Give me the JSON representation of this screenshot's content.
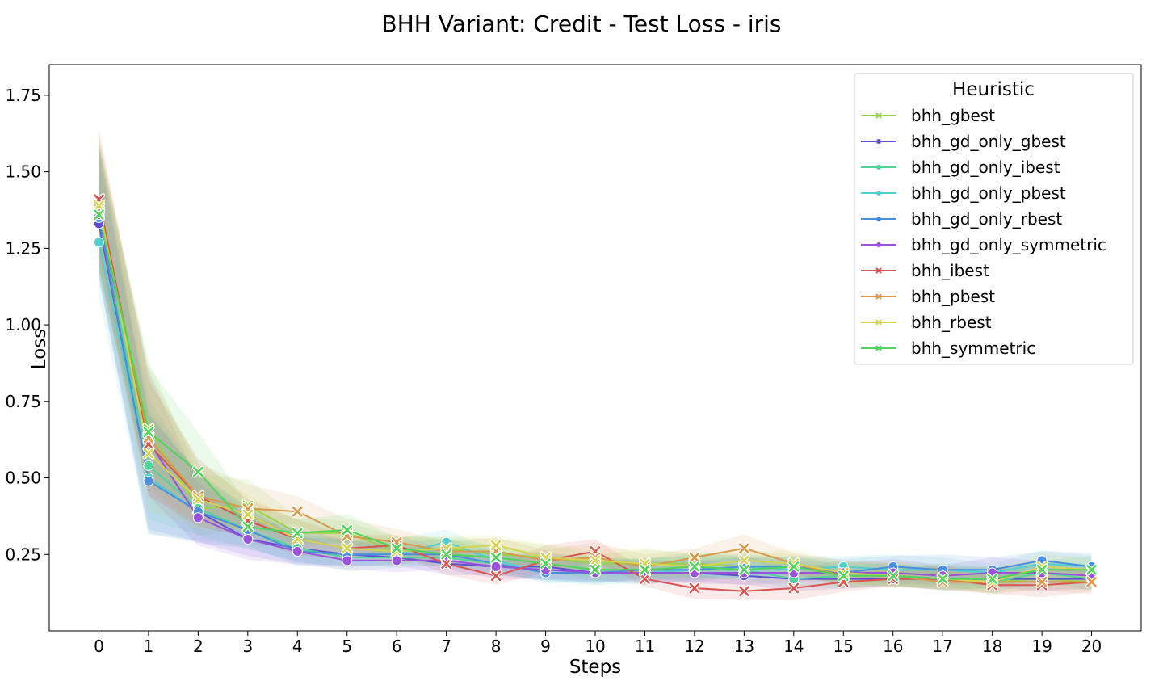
{
  "chart_data": {
    "type": "line",
    "title": "BHH Variant: Credit - Test Loss - iris",
    "xlabel": "Steps",
    "ylabel": "Loss",
    "xlim": [
      -1,
      21
    ],
    "ylim": [
      0.0,
      1.85
    ],
    "x": [
      0,
      1,
      2,
      3,
      4,
      5,
      6,
      7,
      8,
      9,
      10,
      11,
      12,
      13,
      14,
      15,
      16,
      17,
      18,
      19,
      20
    ],
    "x_ticks": [
      "0",
      "1",
      "2",
      "3",
      "4",
      "5",
      "6",
      "7",
      "8",
      "9",
      "10",
      "11",
      "12",
      "13",
      "14",
      "15",
      "16",
      "17",
      "18",
      "19",
      "20"
    ],
    "y_ticks": [
      0.25,
      0.5,
      0.75,
      1.0,
      1.25,
      1.5,
      1.75
    ],
    "y_tick_labels": [
      "0.25",
      "0.50",
      "0.75",
      "1.00",
      "1.25",
      "1.50",
      "1.75"
    ],
    "grid": false,
    "legend": {
      "title": "Heuristic",
      "position": "top-right"
    },
    "series": [
      {
        "name": "bhh_gbest",
        "color": "#96d44a",
        "marker": "x",
        "values": [
          1.37,
          0.66,
          0.4,
          0.41,
          0.32,
          0.32,
          0.26,
          0.27,
          0.25,
          0.24,
          0.22,
          0.22,
          0.22,
          0.21,
          0.21,
          0.18,
          0.18,
          0.17,
          0.16,
          0.17,
          0.16
        ]
      },
      {
        "name": "bhh_gd_only_gbest",
        "color": "#5d4fd6",
        "marker": "o",
        "values": [
          1.33,
          0.5,
          0.39,
          0.3,
          0.27,
          0.25,
          0.24,
          0.22,
          0.21,
          0.21,
          0.19,
          0.19,
          0.19,
          0.18,
          0.17,
          0.17,
          0.17,
          0.17,
          0.17,
          0.17,
          0.17
        ]
      },
      {
        "name": "bhh_gd_only_ibest",
        "color": "#4fd49a",
        "marker": "o",
        "values": [
          1.35,
          0.54,
          0.4,
          0.33,
          0.27,
          0.24,
          0.24,
          0.24,
          0.22,
          0.19,
          0.19,
          0.19,
          0.2,
          0.2,
          0.17,
          0.18,
          0.18,
          0.17,
          0.16,
          0.19,
          0.17
        ]
      },
      {
        "name": "bhh_gd_only_pbest",
        "color": "#4fd0d0",
        "marker": "o",
        "values": [
          1.27,
          0.5,
          0.39,
          0.33,
          0.26,
          0.25,
          0.25,
          0.29,
          0.23,
          0.19,
          0.19,
          0.19,
          0.2,
          0.21,
          0.2,
          0.21,
          0.2,
          0.2,
          0.19,
          0.22,
          0.21
        ]
      },
      {
        "name": "bhh_gd_only_rbest",
        "color": "#4a8ee0",
        "marker": "o",
        "values": [
          1.35,
          0.49,
          0.39,
          0.33,
          0.26,
          0.25,
          0.25,
          0.25,
          0.22,
          0.19,
          0.19,
          0.2,
          0.2,
          0.21,
          0.21,
          0.19,
          0.21,
          0.2,
          0.2,
          0.23,
          0.21
        ]
      },
      {
        "name": "bhh_gd_only_symmetric",
        "color": "#9a52dc",
        "marker": "o",
        "values": [
          1.36,
          0.62,
          0.37,
          0.3,
          0.26,
          0.23,
          0.23,
          0.23,
          0.21,
          0.2,
          0.19,
          0.19,
          0.19,
          0.19,
          0.19,
          0.19,
          0.19,
          0.18,
          0.19,
          0.19,
          0.18
        ]
      },
      {
        "name": "bhh_ibest",
        "color": "#d9534f",
        "marker": "x",
        "values": [
          1.41,
          0.61,
          0.44,
          0.36,
          0.3,
          0.27,
          0.28,
          0.22,
          0.18,
          0.23,
          0.26,
          0.17,
          0.14,
          0.13,
          0.14,
          0.16,
          0.17,
          0.17,
          0.15,
          0.15,
          0.16
        ]
      },
      {
        "name": "bhh_pbest",
        "color": "#d9984a",
        "marker": "x",
        "values": [
          1.38,
          0.63,
          0.44,
          0.4,
          0.39,
          0.31,
          0.29,
          0.26,
          0.26,
          0.23,
          0.24,
          0.21,
          0.24,
          0.27,
          0.22,
          0.18,
          0.18,
          0.16,
          0.16,
          0.16,
          0.16
        ]
      },
      {
        "name": "bhh_rbest",
        "color": "#d4d44f",
        "marker": "x",
        "values": [
          1.39,
          0.58,
          0.43,
          0.38,
          0.3,
          0.27,
          0.26,
          0.27,
          0.28,
          0.24,
          0.23,
          0.22,
          0.21,
          0.23,
          0.22,
          0.19,
          0.18,
          0.17,
          0.16,
          0.21,
          0.2
        ]
      },
      {
        "name": "bhh_symmetric",
        "color": "#4fd45a",
        "marker": "x",
        "values": [
          1.36,
          0.65,
          0.52,
          0.34,
          0.32,
          0.33,
          0.27,
          0.25,
          0.24,
          0.22,
          0.2,
          0.2,
          0.21,
          0.2,
          0.21,
          0.18,
          0.18,
          0.17,
          0.17,
          0.2,
          0.2
        ]
      }
    ]
  }
}
